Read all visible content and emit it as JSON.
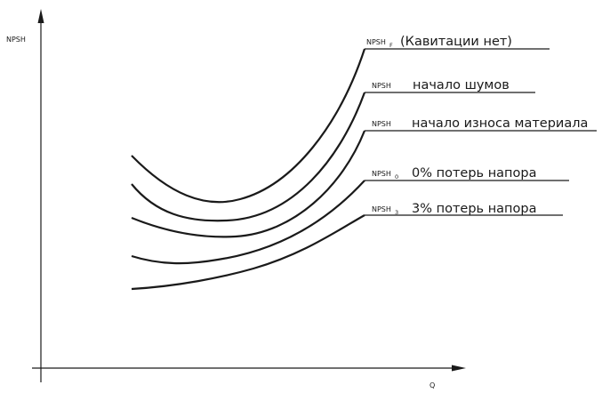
{
  "chart_data": {
    "type": "line",
    "title": "",
    "xlabel": "Q",
    "ylabel": "NPSH",
    "grid": false,
    "series": [
      {
        "prefix": "NPSH",
        "subscript": "F",
        "desc": "(Кавитации нет)"
      },
      {
        "prefix": "NPSH",
        "subscript": "",
        "desc": "начало шумов"
      },
      {
        "prefix": "NPSH",
        "subscript": "",
        "desc": "начало износа материала"
      },
      {
        "prefix": "NPSH",
        "subscript": "0",
        "desc": "0% потерь напора"
      },
      {
        "prefix": "NPSH",
        "subscript": "3",
        "desc": "3% потерь напора"
      }
    ]
  }
}
